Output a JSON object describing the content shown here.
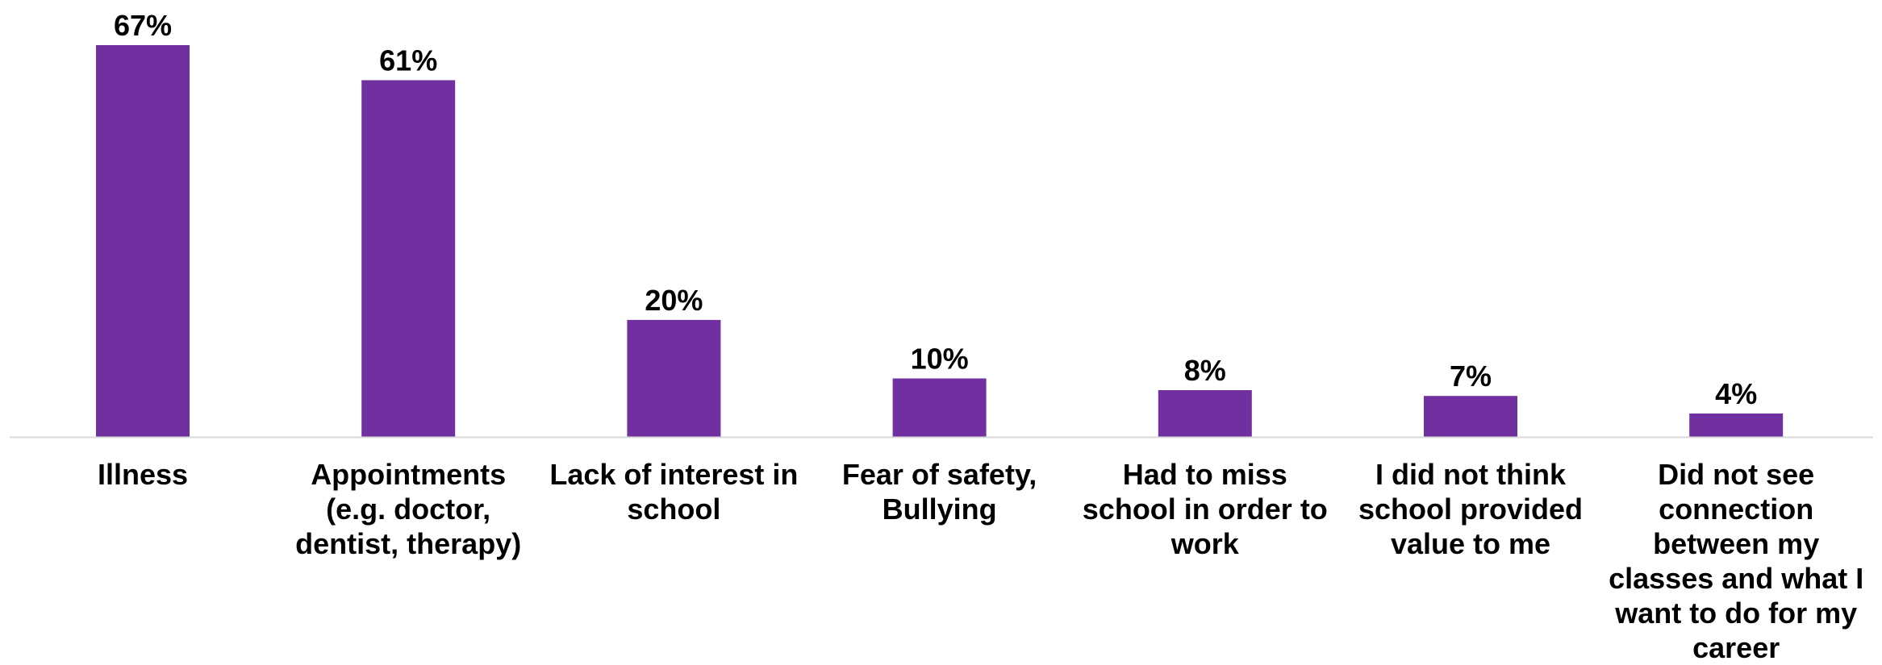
{
  "chart_data": {
    "type": "bar",
    "categories": [
      "Illness",
      "Appointments\n(e.g. doctor,\ndentist, therapy)",
      "Lack of interest in\nschool",
      "Fear of safety,\nBullying",
      "Had to miss\nschool in order to\nwork",
      "I did not think\nschool provided\nvalue to me",
      "Did not see\nconnection\nbetween my\nclasses and what I\nwant to do for my\ncareer"
    ],
    "values": [
      67,
      61,
      20,
      10,
      8,
      7,
      4
    ],
    "value_labels": [
      "67%",
      "61%",
      "20%",
      "10%",
      "8%",
      "7%",
      "4%"
    ],
    "unit": "%",
    "ylim": [
      0,
      67
    ],
    "grid": false,
    "legend": "none"
  },
  "colors": {
    "bar": "#7030A0",
    "axis": "#D9D9D9",
    "text": "#000000"
  }
}
